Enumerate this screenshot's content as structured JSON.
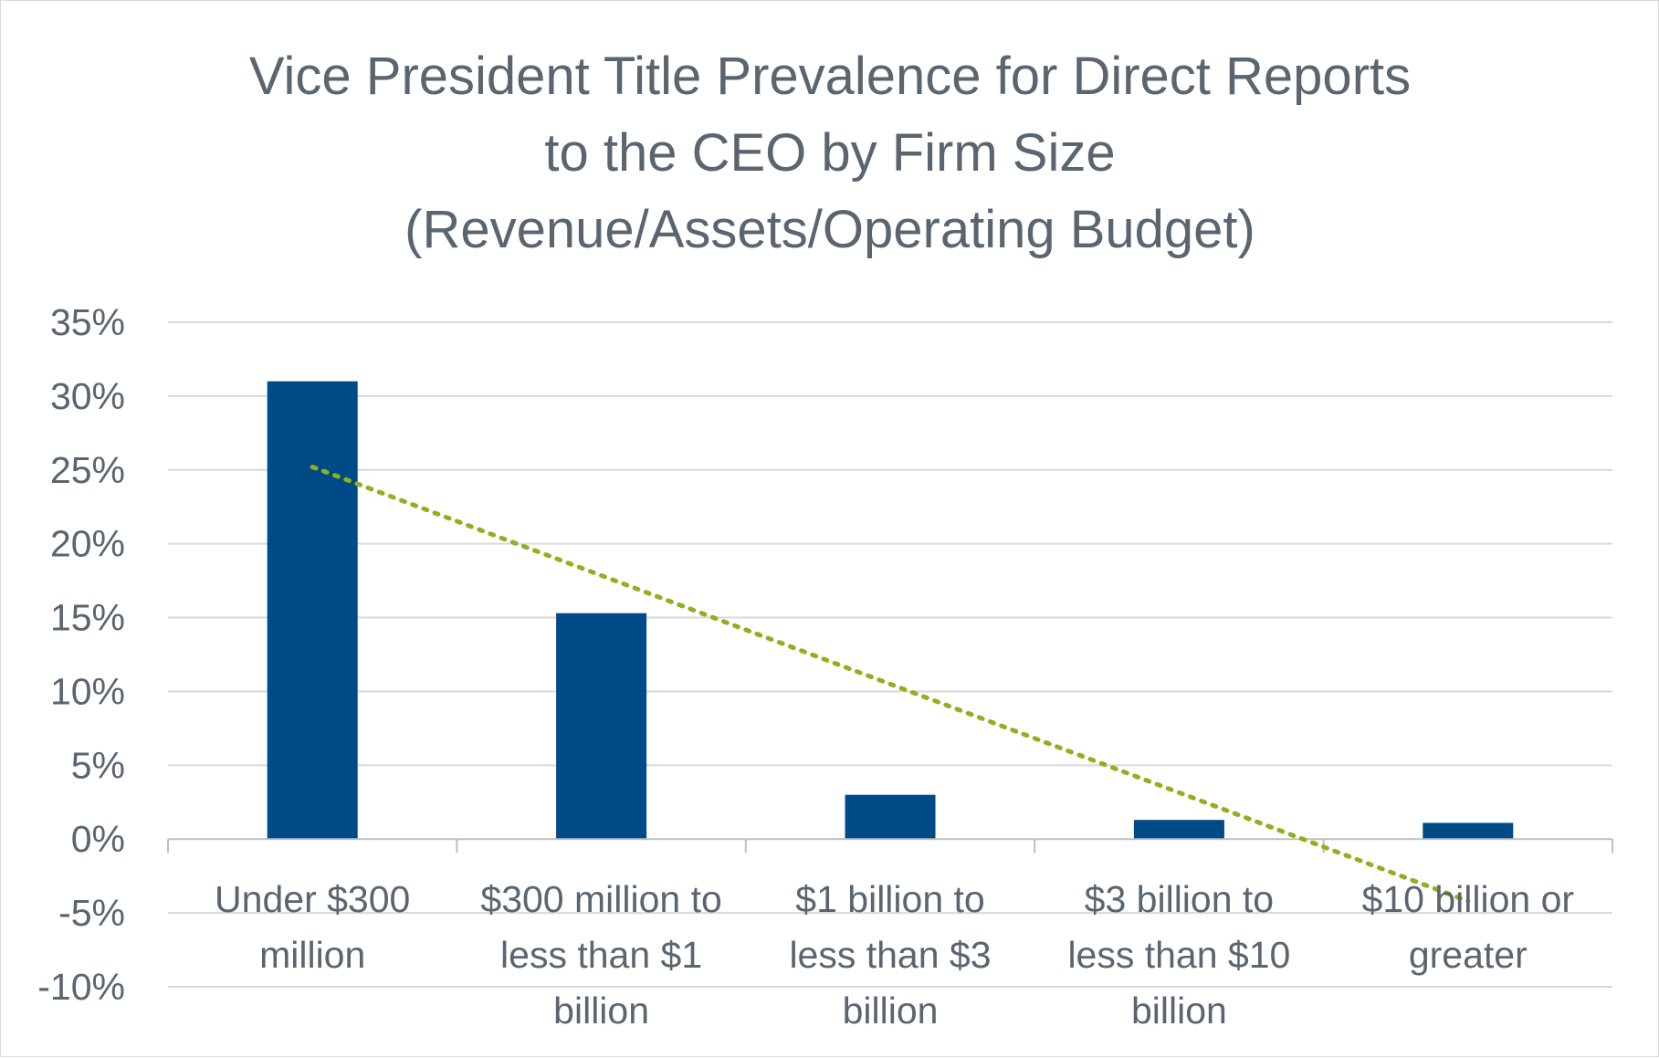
{
  "chart_data": {
    "type": "bar",
    "title": [
      "Vice President Title Prevalence for Direct Reports",
      "to the CEO by Firm Size",
      "(Revenue/Assets/Operating Budget)"
    ],
    "categories": [
      [
        "Under $300",
        "million"
      ],
      [
        "$300 million to",
        "less than $1",
        "billion"
      ],
      [
        "$1 billion to",
        "less than $3",
        "billion"
      ],
      [
        "$3 billion to",
        "less than $10",
        "billion"
      ],
      [
        "$10 billion or",
        "greater"
      ]
    ],
    "series": [
      {
        "name": "Vice President",
        "values": [
          31.0,
          15.3,
          3.0,
          1.3,
          1.1
        ]
      }
    ],
    "trendline": {
      "type": "linear",
      "style": "dotted",
      "start_value": 25.2,
      "end_value": -4.2
    },
    "ylim": [
      -10,
      35
    ],
    "yticks": [
      35,
      30,
      25,
      20,
      15,
      10,
      5,
      0,
      -5,
      -10
    ],
    "ytick_labels": [
      "35%",
      "30%",
      "25%",
      "20%",
      "15%",
      "10%",
      "5%",
      "0%",
      "-5%",
      "-10%"
    ],
    "xlabel": "",
    "ylabel": "",
    "grid": true,
    "legend": "none"
  },
  "colors": {
    "bar": "#004b87",
    "trendline": "#8cb21d",
    "grid": "#d9d9d9",
    "axis": "#bfbfbf",
    "text": "#5a6570"
  }
}
